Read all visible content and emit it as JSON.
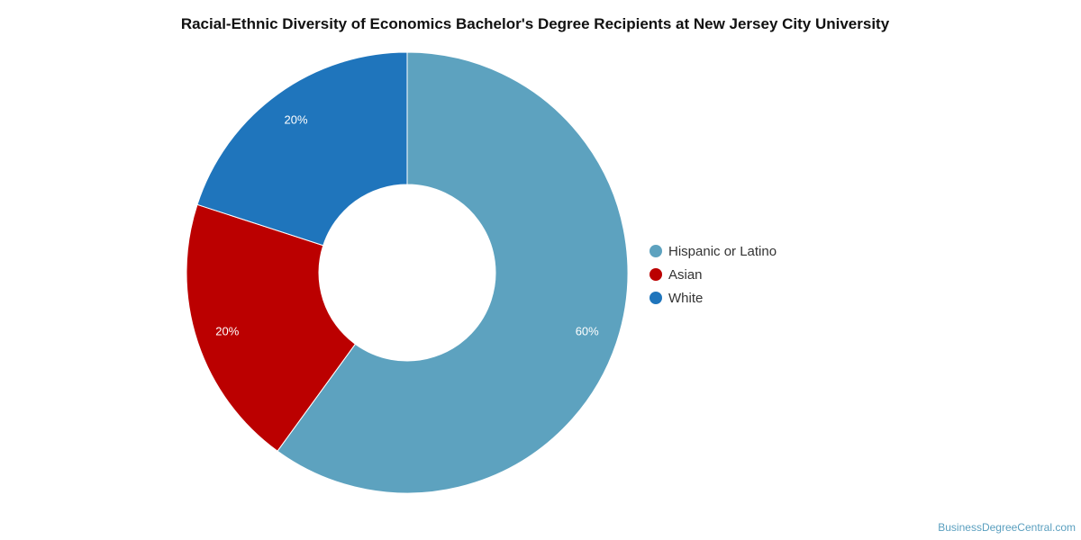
{
  "chart_data": {
    "type": "pie",
    "variant": "donut",
    "title": "Racial-Ethnic Diversity of Economics Bachelor's Degree Recipients at New Jersey City University",
    "categories": [
      "Hispanic or Latino",
      "Asian",
      "White"
    ],
    "values": [
      60,
      20,
      20
    ],
    "data_labels": [
      "60%",
      "20%",
      "20%"
    ],
    "colors": [
      "#5da2bf",
      "#bb0000",
      "#1f75bc"
    ],
    "legend_position": "right",
    "start_angle_deg": 0,
    "direction": "clockwise"
  },
  "watermark": "BusinessDegreeCentral.com"
}
